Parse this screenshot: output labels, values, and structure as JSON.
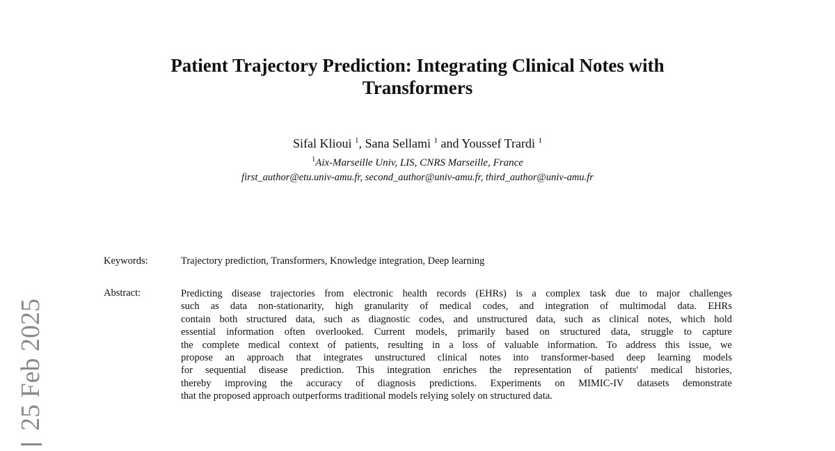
{
  "title": {
    "line1": "Patient Trajectory Prediction: Integrating Clinical Notes with",
    "line2": "Transformers"
  },
  "authors": [
    {
      "name": "Sifal Klioui",
      "aff": "1"
    },
    {
      "name": "Sana Sellami",
      "aff": "1"
    },
    {
      "name": "Youssef Trardi",
      "aff": "1"
    }
  ],
  "author_separators": [
    ", ",
    " and "
  ],
  "affiliation": {
    "mark": "1",
    "text": "Aix-Marseille Univ, LIS, CNRS Marseille, France"
  },
  "emails": "first_author@etu.univ-amu.fr, second_author@univ-amu.fr, third_author@univ-amu.fr",
  "keywords": {
    "label": "Keywords:",
    "text": "Trajectory prediction, Transformers, Knowledge integration, Deep learning"
  },
  "abstract": {
    "label": "Abstract:",
    "lines": [
      "Predicting disease trajectories from electronic health records (EHRs) is a complex task due to major challenges",
      "such as data non-stationarity, high granularity of medical codes, and integration of multimodal data. EHRs",
      "contain both structured data, such as diagnostic codes, and unstructured data, such as clinical notes, which hold",
      "essential information often overlooked. Current models, primarily based on structured data, struggle to capture",
      "the complete medical context of patients, resulting in a loss of valuable information. To address this issue, we",
      "propose an approach that integrates unstructured clinical notes into transformer-based deep learning models",
      "for sequential disease prediction. This integration enriches the representation of patients' medical histories,",
      "thereby improving the accuracy of diagnosis predictions. Experiments on MIMIC-IV datasets demonstrate",
      "that the proposed approach outperforms traditional models relying solely on structured data."
    ]
  },
  "arxiv_stamp": {
    "date": "25 Feb 2025",
    "color": "#8a8a8a"
  }
}
